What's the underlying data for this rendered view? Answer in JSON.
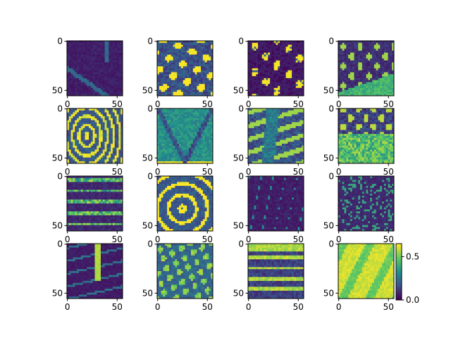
{
  "chart_data": {
    "type": "heatmap",
    "layout": {
      "rows": 4,
      "cols": 4
    },
    "panel_count": 16,
    "image_shape": [
      56,
      56
    ],
    "x_ticks": [
      0,
      50
    ],
    "y_ticks": [
      0,
      50
    ],
    "colormap": "viridis",
    "colormap_colors": [
      "#440154",
      "#3b528b",
      "#21918c",
      "#5ec962",
      "#fde725"
    ],
    "color_range": [
      0,
      0.65
    ],
    "colorbar": {
      "ticks": [
        0.0,
        0.5
      ],
      "tick_labels": [
        "0.0",
        "0.5"
      ],
      "attached_to_panel": 16
    },
    "panels": [
      {
        "index": 1,
        "pattern": "dark_diagonal_band"
      },
      {
        "index": 2,
        "pattern": "dense_yellow_strokes"
      },
      {
        "index": 3,
        "pattern": "sparse_yellow_blobs"
      },
      {
        "index": 4,
        "pattern": "dark_with_green_lower_wedge"
      },
      {
        "index": 5,
        "pattern": "contour_rings"
      },
      {
        "index": 6,
        "pattern": "v_shape_teal"
      },
      {
        "index": 7,
        "pattern": "vertical_dark_strip"
      },
      {
        "index": 8,
        "pattern": "bright_lower_half"
      },
      {
        "index": 9,
        "pattern": "horizontal_bands"
      },
      {
        "index": 10,
        "pattern": "curved_yellow_structures"
      },
      {
        "index": 11,
        "pattern": "dark_vertical_lines"
      },
      {
        "index": 12,
        "pattern": "dark_speckle"
      },
      {
        "index": 13,
        "pattern": "dark_central_spike"
      },
      {
        "index": 14,
        "pattern": "scribbled_teal"
      },
      {
        "index": 15,
        "pattern": "horizontal_stripes_bright_top"
      },
      {
        "index": 16,
        "pattern": "bright_yellow_blocks"
      }
    ]
  }
}
